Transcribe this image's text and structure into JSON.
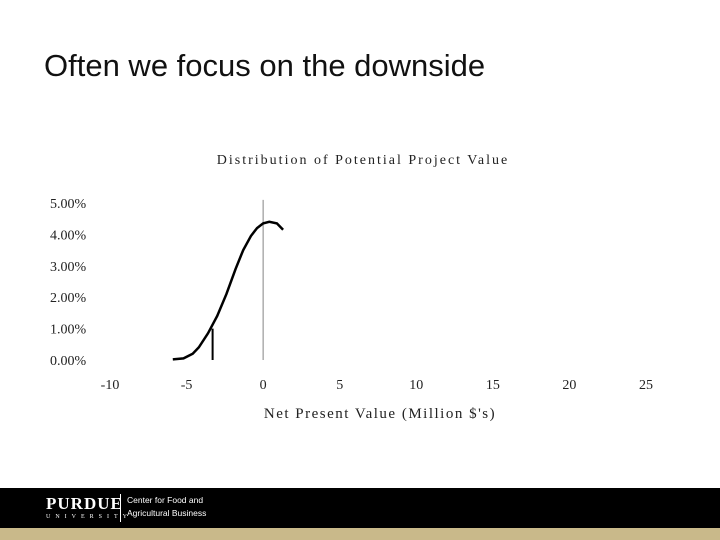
{
  "slide": {
    "title": "Often we focus on the downside"
  },
  "chart_data": {
    "type": "line",
    "title": "Distribution of Potential Project Value",
    "xlabel": "Net Present Value (Million $'s)",
    "ylabel": "",
    "x_ticks": [
      "-10",
      "-5",
      "0",
      "5",
      "10",
      "15",
      "20",
      "25"
    ],
    "y_ticks": [
      "0.00%",
      "1.00%",
      "2.00%",
      "3.00%",
      "4.00%",
      "5.00%"
    ],
    "xlim": [
      -10,
      25
    ],
    "ylim": [
      0,
      5
    ],
    "series": [
      {
        "x": [
          -5.9,
          -5.2,
          -4.6,
          -4.2,
          -3.6,
          -3.0,
          -2.4,
          -1.8,
          -1.3,
          -0.8,
          -0.4,
          0.0,
          0.4,
          0.9,
          1.3
        ],
        "y": [
          0.02,
          0.05,
          0.2,
          0.4,
          0.85,
          1.4,
          2.1,
          2.9,
          3.5,
          3.95,
          4.2,
          4.35,
          4.4,
          4.35,
          4.15
        ]
      }
    ],
    "markers": [
      {
        "x": -3.3,
        "y_from": 0.0,
        "y_to": 1.0
      },
      {
        "x": 0.0,
        "y_from": 0.0,
        "y_to": 5.1
      }
    ]
  },
  "footer": {
    "logo_wordmark": "PURDUE",
    "logo_sub": "UNIVERSITY",
    "center_line1": "Center for Food and",
    "center_line2": "Agricultural Business"
  }
}
